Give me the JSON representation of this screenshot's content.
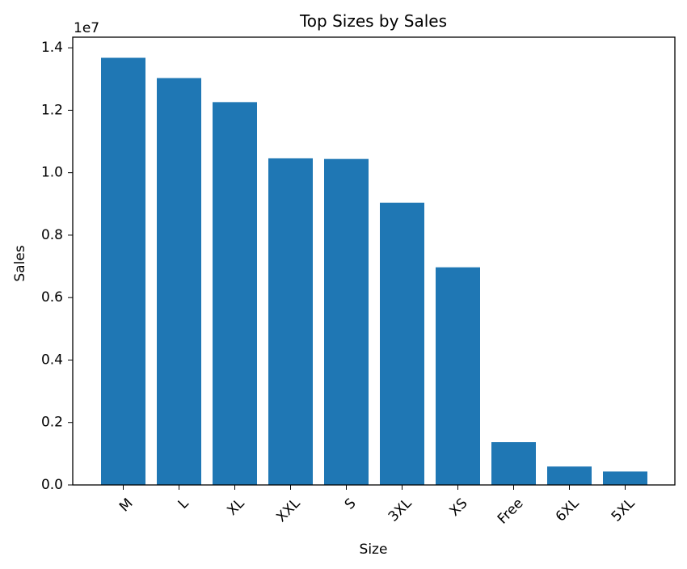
{
  "chart_data": {
    "type": "bar",
    "title": "Top Sizes by Sales",
    "xlabel": "Size",
    "ylabel": "Sales",
    "y_scale_label": "1e7",
    "categories": [
      "M",
      "L",
      "XL",
      "XXL",
      "S",
      "3XL",
      "XS",
      "Free",
      "6XL",
      "5XL"
    ],
    "values": [
      13680000,
      13030000,
      12260000,
      10460000,
      10440000,
      9040000,
      6970000,
      1370000,
      590000,
      430000
    ],
    "ylim": [
      0,
      14000000
    ],
    "yticks": [
      0,
      2000000,
      4000000,
      6000000,
      8000000,
      10000000,
      12000000,
      14000000
    ],
    "ytick_labels": [
      "0.0",
      "0.2",
      "0.4",
      "0.6",
      "0.8",
      "1.0",
      "1.2",
      "1.4"
    ],
    "bar_color": "#1f77b4",
    "grid": false,
    "legend": "none"
  }
}
